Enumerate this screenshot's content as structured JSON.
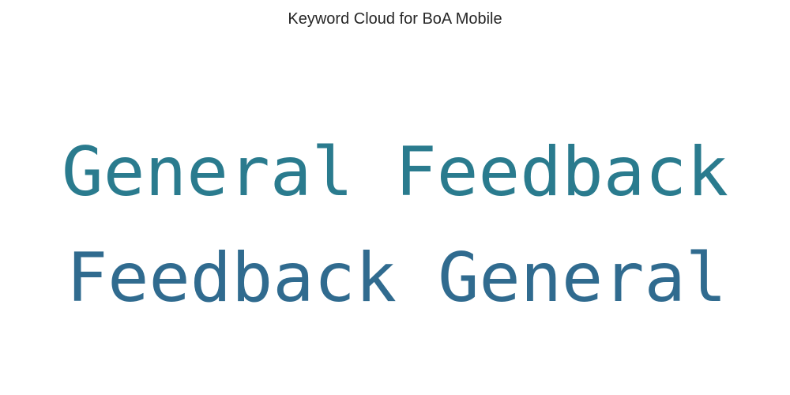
{
  "chart_data": {
    "type": "wordcloud",
    "title": "Keyword Cloud for BoA Mobile",
    "words": [
      {
        "text": "General Feedback",
        "weight": 1.0,
        "color": "#2a7b8e"
      },
      {
        "text": "Feedback General",
        "weight": 1.0,
        "color": "#306b8f"
      }
    ]
  }
}
